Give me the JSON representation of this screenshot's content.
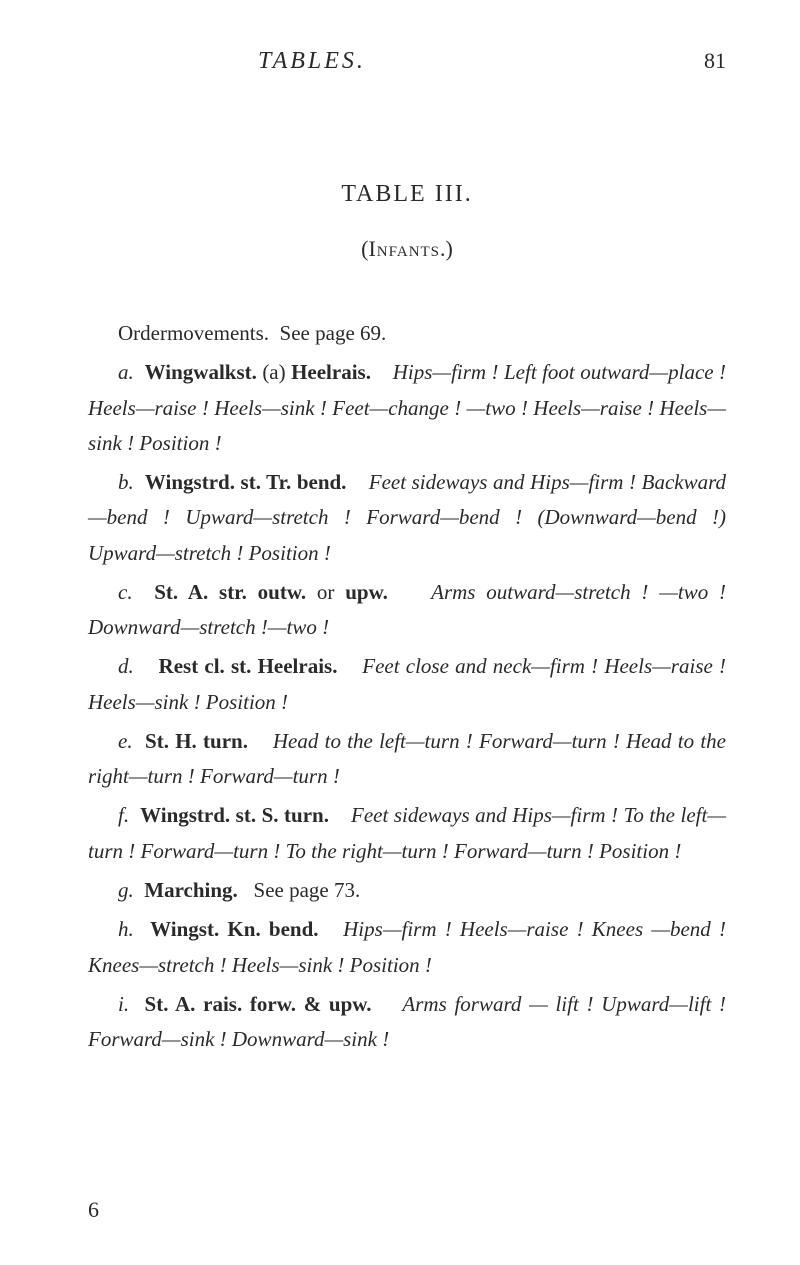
{
  "header": {
    "running_title": "TABLES.",
    "page_number": "81"
  },
  "title": "TABLE III.",
  "subtitle_open": "(",
  "subtitle_main": "Infants",
  "subtitle_close": ".)",
  "entries": {
    "order": {
      "label": "Ordermovements.",
      "text": "See page 69."
    },
    "a": {
      "letter": "a.",
      "bold": "Wingwalkst.",
      "plain1": " (a) ",
      "bold2": "Heelrais.",
      "ital": "Hips—firm ! Left foot outward—place ! Heels—raise ! Heels—sink ! Feet—change ! —two ! Heels—raise ! Heels—sink ! Position !"
    },
    "b": {
      "letter": "b.",
      "bold": "Wingstrd. st. Tr. bend.",
      "ital": "Feet sideways and Hips—firm ! Backward—bend ! Upward—stretch ! Forward—bend ! (Downward—bend !) Upward—stretch ! Position !"
    },
    "c": {
      "letter": "c.",
      "bold": "St. A. str. outw.",
      "plain1": " or ",
      "bold2": "upw.",
      "ital": "Arms outward—stretch ! —two ! Downward—stretch !—two !"
    },
    "d": {
      "letter": "d.",
      "bold": "Rest cl. st. Heelrais.",
      "ital": "Feet close and neck—firm ! Heels—raise ! Heels—sink ! Position !"
    },
    "e": {
      "letter": "e.",
      "bold": "St. H. turn.",
      "ital": "Head to the left—turn ! Forward—turn ! Head to the right—turn ! Forward—turn !"
    },
    "f": {
      "letter": "f.",
      "bold": "Wingstrd. st. S. turn.",
      "ital": "Feet sideways and Hips—firm ! To the left—turn ! Forward—turn ! To the right—turn ! Forward—turn ! Position !"
    },
    "g": {
      "letter": "g.",
      "bold": "Marching.",
      "plain": "See page 73."
    },
    "h": {
      "letter": "h.",
      "bold": "Wingst. Kn. bend.",
      "ital": "Hips—firm ! Heels—raise ! Knees —bend ! Knees—stretch ! Heels—sink ! Position !"
    },
    "i": {
      "letter": "i.",
      "bold": "St. A. rais. forw. & upw.",
      "ital": "Arms forward — lift ! Upward—lift ! Forward—sink ! Downward—sink !"
    }
  },
  "footer": "6"
}
